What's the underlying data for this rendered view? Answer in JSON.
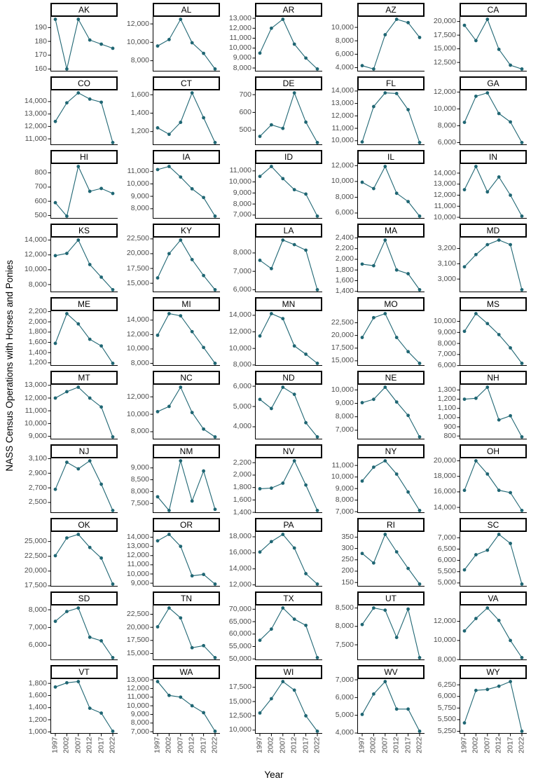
{
  "chart_data": {
    "type": "line",
    "title": "",
    "xlabel": "Year",
    "ylabel": "NASS Census Operations with Horses and Ponies",
    "x": [
      1997,
      2002,
      2007,
      2012,
      2017,
      2022
    ],
    "line_color": "#1f6673",
    "point_color": "#1f6673",
    "axis_color": "#000000",
    "tick_label_color": "#4d4d4d",
    "layout_hints": {
      "grid": "10 rows x 5 cols",
      "legend": "none",
      "theme": "classic",
      "facet_strip": "boxed",
      "x_tick_angle": 90
    },
    "facets": [
      {
        "state": "AK",
        "yticks": [
          160,
          170,
          180,
          190
        ],
        "values": [
          196,
          160,
          196,
          181,
          178,
          175
        ]
      },
      {
        "state": "AL",
        "yticks": [
          8000,
          10000,
          12000
        ],
        "values": [
          9600,
          10300,
          12500,
          9950,
          8800,
          7100
        ]
      },
      {
        "state": "AR",
        "yticks": [
          8000,
          9000,
          10000,
          11000,
          12000,
          13000
        ],
        "values": [
          9500,
          12000,
          12900,
          10400,
          9000,
          7900
        ]
      },
      {
        "state": "AZ",
        "yticks": [
          4000,
          6000,
          8000,
          10000
        ],
        "values": [
          4300,
          3800,
          8900,
          11200,
          10700,
          8500
        ]
      },
      {
        "state": "CA",
        "yticks": [
          12500,
          15000,
          17500,
          20000
        ],
        "values": [
          19300,
          16500,
          20400,
          14900,
          12000,
          11300
        ]
      },
      {
        "state": "CO",
        "yticks": [
          11000,
          12000,
          13000,
          14000
        ],
        "values": [
          12400,
          13900,
          14700,
          14200,
          13950,
          10700
        ]
      },
      {
        "state": "CT",
        "yticks": [
          1200,
          1400,
          1600
        ],
        "values": [
          1240,
          1170,
          1300,
          1620,
          1350,
          1080
        ]
      },
      {
        "state": "DE",
        "yticks": [
          500,
          600,
          700
        ],
        "values": [
          465,
          530,
          510,
          710,
          545,
          430
        ]
      },
      {
        "state": "FL",
        "yticks": [
          10000,
          11000,
          12000,
          13000,
          14000
        ],
        "values": [
          9900,
          12750,
          13850,
          13800,
          12500,
          9850
        ]
      },
      {
        "state": "GA",
        "yticks": [
          6000,
          8000,
          10000,
          12000
        ],
        "values": [
          8400,
          11500,
          11900,
          9450,
          8450,
          6000
        ]
      },
      {
        "state": "HI",
        "yticks": [
          500,
          600,
          700,
          800
        ],
        "values": [
          590,
          495,
          845,
          670,
          690,
          655
        ]
      },
      {
        "state": "IA",
        "yticks": [
          8000,
          9000,
          10000,
          11000
        ],
        "values": [
          11150,
          11400,
          10550,
          9600,
          8900,
          7400
        ]
      },
      {
        "state": "ID",
        "yticks": [
          7000,
          8000,
          9000,
          10000,
          11000
        ],
        "values": [
          10500,
          11400,
          10300,
          9300,
          8900,
          6900
        ]
      },
      {
        "state": "IL",
        "yticks": [
          6000,
          8000,
          10000,
          12000
        ],
        "values": [
          9900,
          9100,
          11900,
          8500,
          7450,
          5600
        ]
      },
      {
        "state": "IN",
        "yticks": [
          10000,
          11000,
          12000,
          13000,
          14000
        ],
        "values": [
          12500,
          14600,
          12300,
          13650,
          12000,
          10100
        ]
      },
      {
        "state": "KS",
        "yticks": [
          8000,
          10000,
          12000,
          14000
        ],
        "values": [
          11900,
          12200,
          14000,
          10700,
          9000,
          7300
        ]
      },
      {
        "state": "KY",
        "yticks": [
          15000,
          17500,
          20000,
          22500
        ],
        "values": [
          15900,
          20000,
          22300,
          19000,
          16300,
          13900
        ]
      },
      {
        "state": "LA",
        "yticks": [
          6000,
          7000,
          8000
        ],
        "values": [
          7600,
          7150,
          8700,
          8450,
          8150,
          6000
        ]
      },
      {
        "state": "MA",
        "yticks": [
          1400,
          1600,
          1800,
          2000,
          2200,
          2400
        ],
        "values": [
          1910,
          1880,
          2360,
          1800,
          1730,
          1430
        ]
      },
      {
        "state": "MD",
        "yticks": [
          3000,
          3100,
          3200
        ],
        "values": [
          3080,
          3160,
          3225,
          3255,
          3225,
          2930
        ]
      },
      {
        "state": "ME",
        "yticks": [
          1200,
          1400,
          1600,
          1800,
          2000,
          2200
        ],
        "values": [
          1580,
          2160,
          1960,
          1660,
          1530,
          1190
        ]
      },
      {
        "state": "MI",
        "yticks": [
          8000,
          10000,
          12000,
          14000
        ],
        "values": [
          11900,
          14900,
          14600,
          12400,
          10200,
          8000
        ]
      },
      {
        "state": "MN",
        "yticks": [
          8000,
          10000,
          12000,
          14000
        ],
        "values": [
          11500,
          14200,
          13600,
          10300,
          9300,
          8200
        ]
      },
      {
        "state": "MO",
        "yticks": [
          15000,
          17500,
          20000,
          22500
        ],
        "values": [
          19600,
          23500,
          24300,
          19600,
          16800,
          14500
        ]
      },
      {
        "state": "MS",
        "yticks": [
          6000,
          7000,
          8000,
          9000,
          10000
        ],
        "values": [
          9100,
          10700,
          9800,
          8800,
          7600,
          6200
        ]
      },
      {
        "state": "MT",
        "yticks": [
          9000,
          10000,
          11000,
          12000,
          13000
        ],
        "values": [
          12000,
          12500,
          12850,
          12000,
          11300,
          8950
        ]
      },
      {
        "state": "NC",
        "yticks": [
          8000,
          10000,
          12000
        ],
        "values": [
          10300,
          10900,
          13100,
          10200,
          8300,
          7400
        ]
      },
      {
        "state": "ND",
        "yticks": [
          4000,
          5000,
          6000
        ],
        "values": [
          5350,
          4900,
          5950,
          5600,
          4200,
          3500
        ]
      },
      {
        "state": "NE",
        "yticks": [
          7000,
          8000,
          9000,
          10000
        ],
        "values": [
          9050,
          9300,
          10200,
          9100,
          8100,
          6500
        ]
      },
      {
        "state": "NH",
        "yticks": [
          800,
          900,
          1000,
          1100,
          1200,
          1300
        ],
        "values": [
          1200,
          1210,
          1330,
          975,
          1020,
          790
        ]
      },
      {
        "state": "NJ",
        "yticks": [
          2500,
          2700,
          2900,
          3100
        ],
        "values": [
          2680,
          3050,
          2960,
          3070,
          2750,
          2390
        ]
      },
      {
        "state": "NM",
        "yticks": [
          7500,
          8000,
          8500,
          9000
        ],
        "values": [
          7780,
          7200,
          9300,
          7600,
          8870,
          7250
        ]
      },
      {
        "state": "NV",
        "yticks": [
          1400,
          1600,
          1800,
          2000,
          2200
        ],
        "values": [
          1780,
          1790,
          1870,
          2230,
          1840,
          1430
        ]
      },
      {
        "state": "NY",
        "yticks": [
          7000,
          8000,
          9000,
          10000,
          11000
        ],
        "values": [
          9650,
          10850,
          11400,
          10250,
          8700,
          7100
        ]
      },
      {
        "state": "OH",
        "yticks": [
          14000,
          16000,
          18000,
          20000
        ],
        "values": [
          16200,
          20000,
          18300,
          16200,
          15900,
          13600
        ]
      },
      {
        "state": "OK",
        "yticks": [
          17500,
          20000,
          22500,
          25000
        ],
        "values": [
          22600,
          25600,
          26200,
          24000,
          22200,
          17800
        ]
      },
      {
        "state": "OR",
        "yticks": [
          9000,
          10000,
          11000,
          12000,
          13000,
          14000
        ],
        "values": [
          13600,
          14300,
          13000,
          9800,
          9950,
          8900
        ]
      },
      {
        "state": "PA",
        "yticks": [
          12000,
          14000,
          16000,
          18000
        ],
        "values": [
          16100,
          17400,
          18300,
          16600,
          13400,
          12100
        ]
      },
      {
        "state": "RI",
        "yticks": [
          150,
          200,
          250,
          300,
          350
        ],
        "values": [
          278,
          236,
          362,
          285,
          212,
          143
        ]
      },
      {
        "state": "SC",
        "yticks": [
          5000,
          5500,
          6000,
          6500,
          7000
        ],
        "values": [
          5580,
          6250,
          6450,
          7150,
          6750,
          4950
        ]
      },
      {
        "state": "SD",
        "yticks": [
          6000,
          7000,
          8000
        ],
        "values": [
          7350,
          7900,
          8100,
          6450,
          6250,
          5300
        ]
      },
      {
        "state": "TN",
        "yticks": [
          15000,
          17500,
          20000,
          22500
        ],
        "values": [
          20100,
          23700,
          21800,
          16100,
          16500,
          14200
        ]
      },
      {
        "state": "TX",
        "yticks": [
          50000,
          55000,
          60000,
          65000,
          70000
        ],
        "values": [
          57500,
          62000,
          70500,
          66000,
          63500,
          50500
        ]
      },
      {
        "state": "UT",
        "yticks": [
          7500,
          8000,
          8500
        ],
        "values": [
          8050,
          8500,
          8440,
          7700,
          8470,
          7150
        ]
      },
      {
        "state": "VA",
        "yticks": [
          8000,
          10000,
          12000
        ],
        "values": [
          11000,
          12300,
          13400,
          12100,
          10000,
          8200
        ]
      },
      {
        "state": "VT",
        "yticks": [
          1000,
          1200,
          1400,
          1600,
          1800
        ],
        "values": [
          1740,
          1810,
          1830,
          1390,
          1310,
          1010
        ]
      },
      {
        "state": "WA",
        "yticks": [
          7000,
          8000,
          9000,
          10000,
          11000,
          12000,
          13000
        ],
        "values": [
          12800,
          11200,
          11000,
          10000,
          9200,
          7050
        ]
      },
      {
        "state": "WI",
        "yticks": [
          10000,
          12500,
          15000,
          17500
        ],
        "values": [
          13000,
          15500,
          18500,
          17000,
          12500,
          9800
        ]
      },
      {
        "state": "WV",
        "yticks": [
          4000,
          5000,
          6000,
          7000
        ],
        "values": [
          5050,
          6200,
          6900,
          5350,
          5350,
          4100
        ]
      },
      {
        "state": "WY",
        "yticks": [
          5250,
          5500,
          5750,
          6000,
          6250
        ],
        "values": [
          5430,
          6130,
          6150,
          6220,
          6320,
          5250
        ]
      }
    ]
  }
}
